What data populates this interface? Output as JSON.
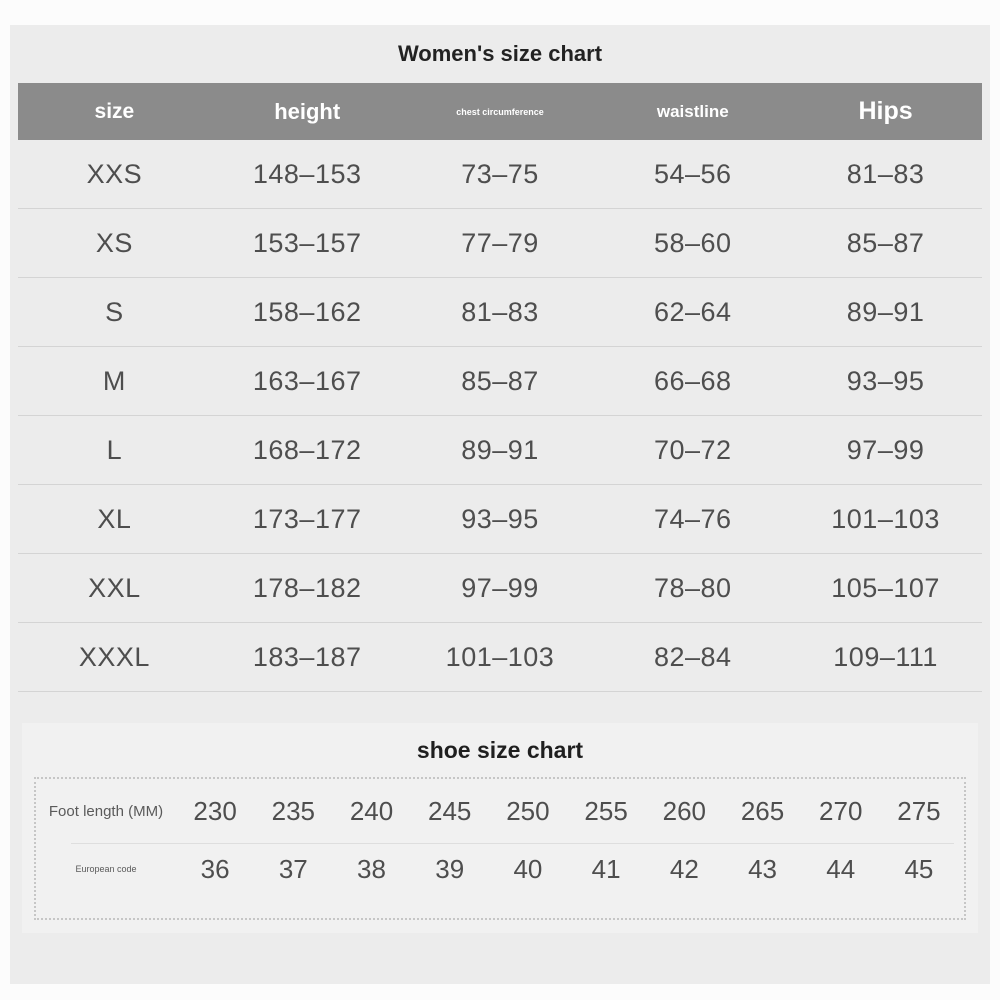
{
  "sections": {
    "women_chart": {
      "title": "Women's size chart",
      "headers": [
        "size",
        "height",
        "chest circumference",
        "waistline",
        "Hips"
      ],
      "rows": [
        [
          "XXS",
          "148–153",
          "73–75",
          "54–56",
          "81–83"
        ],
        [
          "XS",
          "153–157",
          "77–79",
          "58–60",
          "85–87"
        ],
        [
          "S",
          "158–162",
          "81–83",
          "62–64",
          "89–91"
        ],
        [
          "M",
          "163–167",
          "85–87",
          "66–68",
          "93–95"
        ],
        [
          "L",
          "168–172",
          "89–91",
          "70–72",
          "97–99"
        ],
        [
          "XL",
          "173–177",
          "93–95",
          "74–76",
          "101–103"
        ],
        [
          "XXL",
          "178–182",
          "97–99",
          "78–80",
          "105–107"
        ],
        [
          "XXXL",
          "183–187",
          "101–103",
          "82–84",
          "109–111"
        ]
      ]
    },
    "shoe_chart": {
      "title": "shoe size chart",
      "rows": [
        {
          "label": "Foot length (MM)",
          "values": [
            "230",
            "235",
            "240",
            "245",
            "250",
            "255",
            "260",
            "265",
            "270",
            "275"
          ]
        },
        {
          "label": "European code",
          "values": [
            "36",
            "37",
            "38",
            "39",
            "40",
            "41",
            "42",
            "43",
            "44",
            "45"
          ]
        }
      ]
    },
    "colors": {
      "page_bg": "#fcfcfc",
      "content_bg": "#ececec",
      "header_bar": "#8b8b8b",
      "header_text": "#ffffff",
      "title_text": "#222222",
      "cell_text": "#4e4e4e",
      "row_divider": "#d4d4d4",
      "shoe_box_bg": "#f1f1f1",
      "dotted_border": "#c6c6c6"
    }
  },
  "chart_data": [
    {
      "type": "table",
      "title": "Women's size chart",
      "columns": [
        "size",
        "height",
        "chest circumference",
        "waistline",
        "Hips"
      ],
      "rows": [
        [
          "XXS",
          "148–153",
          "73–75",
          "54–56",
          "81–83"
        ],
        [
          "XS",
          "153–157",
          "77–79",
          "58–60",
          "85–87"
        ],
        [
          "S",
          "158–162",
          "81–83",
          "62–64",
          "89–91"
        ],
        [
          "M",
          "163–167",
          "85–87",
          "66–68",
          "93–95"
        ],
        [
          "L",
          "168–172",
          "89–91",
          "70–72",
          "97–99"
        ],
        [
          "XL",
          "173–177",
          "93–95",
          "74–76",
          "101–103"
        ],
        [
          "XXL",
          "178–182",
          "97–99",
          "78–80",
          "105–107"
        ],
        [
          "XXXL",
          "183–187",
          "101–103",
          "82–84",
          "109–111"
        ]
      ]
    },
    {
      "type": "table",
      "title": "shoe size chart",
      "rows": [
        {
          "label": "Foot length (MM)",
          "values": [
            230,
            235,
            240,
            245,
            250,
            255,
            260,
            265,
            270,
            275
          ]
        },
        {
          "label": "European code",
          "values": [
            36,
            37,
            38,
            39,
            40,
            41,
            42,
            43,
            44,
            45
          ]
        }
      ]
    }
  ]
}
